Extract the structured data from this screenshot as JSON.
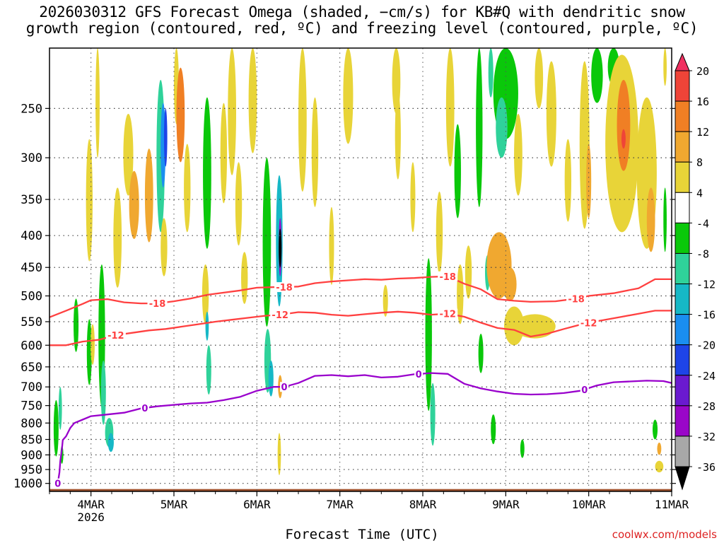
{
  "title": {
    "line1": "2026030312 GFS Forecast Omega (shaded, −cm/s) for KB#Q with dendritic snow",
    "line2": "growth region (contoured, red, ºC) and freezing level (contoured, purple, ºC)"
  },
  "xlabel": "Forecast Time (UTC)",
  "credit": "coolwx.com/models",
  "chart_data": {
    "type": "heatmap",
    "title": "2026030312 GFS Forecast Omega (shaded, −cm/s) for KB#Q with dendritic snow growth region (contoured, red, ºC) and freezing level (contoured, purple, ºC)",
    "xlabel": "Forecast Time (UTC)",
    "ylabel": "",
    "x_ticks": [
      {
        "day": 4,
        "label": "4MAR",
        "sublabel": "2026"
      },
      {
        "day": 5,
        "label": "5MAR"
      },
      {
        "day": 6,
        "label": "6MAR"
      },
      {
        "day": 7,
        "label": "7MAR"
      },
      {
        "day": 8,
        "label": "8MAR"
      },
      {
        "day": 9,
        "label": "9MAR"
      },
      {
        "day": 10,
        "label": "10MAR"
      },
      {
        "day": 11,
        "label": "11MAR"
      }
    ],
    "xlim": [
      3.5,
      11.0
    ],
    "y_ticks": [
      250,
      300,
      350,
      400,
      450,
      500,
      550,
      600,
      650,
      700,
      750,
      800,
      850,
      900,
      950,
      1000
    ],
    "ylim": [
      1030,
      200
    ],
    "grid": true,
    "colorbar": {
      "labels": [
        20,
        16,
        12,
        8,
        4,
        -4,
        -8,
        -12,
        -16,
        -20,
        -24,
        -28,
        -32,
        -36
      ],
      "colors": [
        "#f03060",
        "#ef4438",
        "#f07f24",
        "#f0a830",
        "#e8d438",
        "#ffffff",
        "#0ac80a",
        "#2fd29a",
        "#16b8c6",
        "#1a8ef0",
        "#1e44e8",
        "#6a1ad0",
        "#9a06c8",
        "#a8a8a8",
        "#000000"
      ]
    },
    "omega_blobs": [
      {
        "t": 3.58,
        "p": 820,
        "dt": 0.03,
        "dp": 170,
        "v": -8
      },
      {
        "t": 3.63,
        "p": 760,
        "dt": 0.02,
        "dp": 120,
        "v": -12
      },
      {
        "t": 3.65,
        "p": 900,
        "dt": 0.015,
        "dp": 60,
        "v": -8
      },
      {
        "t": 3.82,
        "p": 560,
        "dt": 0.03,
        "dp": 110,
        "v": -8
      },
      {
        "t": 3.98,
        "p": 360,
        "dt": 0.04,
        "dp": 160,
        "v": 6
      },
      {
        "t": 3.98,
        "p": 620,
        "dt": 0.03,
        "dp": 150,
        "v": -8
      },
      {
        "t": 4.02,
        "p": 600,
        "dt": 0.025,
        "dp": 90,
        "v": 6
      },
      {
        "t": 4.13,
        "p": 600,
        "dt": 0.04,
        "dp": 310,
        "v": -8
      },
      {
        "t": 4.15,
        "p": 720,
        "dt": 0.03,
        "dp": 170,
        "v": -12
      },
      {
        "t": 4.22,
        "p": 830,
        "dt": 0.05,
        "dp": 90,
        "v": -10
      },
      {
        "t": 4.24,
        "p": 860,
        "dt": 0.035,
        "dp": 60,
        "v": -16
      },
      {
        "t": 4.08,
        "p": 250,
        "dt": 0.025,
        "dp": 100,
        "v": 7
      },
      {
        "t": 4.32,
        "p": 410,
        "dt": 0.05,
        "dp": 150,
        "v": 6
      },
      {
        "t": 4.45,
        "p": 300,
        "dt": 0.06,
        "dp": 90,
        "v": 6
      },
      {
        "t": 4.52,
        "p": 360,
        "dt": 0.06,
        "dp": 90,
        "v": 9
      },
      {
        "t": 4.7,
        "p": 350,
        "dt": 0.05,
        "dp": 120,
        "v": 8
      },
      {
        "t": 4.84,
        "p": 310,
        "dt": 0.05,
        "dp": 170,
        "v": -10
      },
      {
        "t": 4.87,
        "p": 290,
        "dt": 0.03,
        "dp": 90,
        "v": -18
      },
      {
        "t": 4.9,
        "p": 280,
        "dt": 0.02,
        "dp": 60,
        "v": -22
      },
      {
        "t": 4.88,
        "p": 420,
        "dt": 0.04,
        "dp": 90,
        "v": 7
      },
      {
        "t": 5.03,
        "p": 210,
        "dt": 0.03,
        "dp": 110,
        "v": 7
      },
      {
        "t": 5.08,
        "p": 260,
        "dt": 0.05,
        "dp": 90,
        "v": 13
      },
      {
        "t": 5.16,
        "p": 340,
        "dt": 0.04,
        "dp": 110,
        "v": 6
      },
      {
        "t": 5.4,
        "p": 330,
        "dt": 0.05,
        "dp": 180,
        "v": -8
      },
      {
        "t": 5.38,
        "p": 500,
        "dt": 0.04,
        "dp": 110,
        "v": 6
      },
      {
        "t": 5.42,
        "p": 660,
        "dt": 0.03,
        "dp": 120,
        "v": -10
      },
      {
        "t": 5.4,
        "p": 560,
        "dt": 0.02,
        "dp": 60,
        "v": -16
      },
      {
        "t": 5.6,
        "p": 300,
        "dt": 0.04,
        "dp": 110,
        "v": 6
      },
      {
        "t": 5.7,
        "p": 260,
        "dt": 0.05,
        "dp": 120,
        "v": 7
      },
      {
        "t": 5.78,
        "p": 360,
        "dt": 0.04,
        "dp": 110,
        "v": 6
      },
      {
        "t": 5.85,
        "p": 470,
        "dt": 0.04,
        "dp": 90,
        "v": 6
      },
      {
        "t": 5.95,
        "p": 240,
        "dt": 0.05,
        "dp": 110,
        "v": 6
      },
      {
        "t": 6.12,
        "p": 430,
        "dt": 0.05,
        "dp": 260,
        "v": -8
      },
      {
        "t": 6.13,
        "p": 640,
        "dt": 0.04,
        "dp": 150,
        "v": -10
      },
      {
        "t": 6.17,
        "p": 680,
        "dt": 0.03,
        "dp": 90,
        "v": -16
      },
      {
        "t": 6.27,
        "p": 420,
        "dt": 0.04,
        "dp": 200,
        "v": -14
      },
      {
        "t": 6.28,
        "p": 420,
        "dt": 0.015,
        "dp": 90,
        "v": -30
      },
      {
        "t": 6.28,
        "p": 420,
        "dt": 0.006,
        "dp": 60,
        "v": -40
      },
      {
        "t": 6.28,
        "p": 700,
        "dt": 0.025,
        "dp": 60,
        "v": 9
      },
      {
        "t": 6.27,
        "p": 900,
        "dt": 0.02,
        "dp": 140,
        "v": 6
      },
      {
        "t": 6.55,
        "p": 250,
        "dt": 0.05,
        "dp": 180,
        "v": 6
      },
      {
        "t": 6.7,
        "p": 300,
        "dt": 0.04,
        "dp": 120,
        "v": 6
      },
      {
        "t": 6.9,
        "p": 420,
        "dt": 0.03,
        "dp": 120,
        "v": 5
      },
      {
        "t": 7.1,
        "p": 230,
        "dt": 0.06,
        "dp": 110,
        "v": 6
      },
      {
        "t": 7.55,
        "p": 510,
        "dt": 0.03,
        "dp": 60,
        "v": 6
      },
      {
        "t": 7.68,
        "p": 200,
        "dt": 0.05,
        "dp": 110,
        "v": 6
      },
      {
        "t": 7.7,
        "p": 280,
        "dt": 0.035,
        "dp": 90,
        "v": 6
      },
      {
        "t": 7.88,
        "p": 350,
        "dt": 0.03,
        "dp": 90,
        "v": 5
      },
      {
        "t": 8.07,
        "p": 600,
        "dt": 0.04,
        "dp": 330,
        "v": -8
      },
      {
        "t": 8.12,
        "p": 780,
        "dt": 0.03,
        "dp": 180,
        "v": -12
      },
      {
        "t": 8.2,
        "p": 400,
        "dt": 0.04,
        "dp": 120,
        "v": 6
      },
      {
        "t": 8.33,
        "p": 230,
        "dt": 0.05,
        "dp": 160,
        "v": 6
      },
      {
        "t": 8.42,
        "p": 320,
        "dt": 0.04,
        "dp": 110,
        "v": -8
      },
      {
        "t": 8.45,
        "p": 500,
        "dt": 0.04,
        "dp": 110,
        "v": 6
      },
      {
        "t": 8.55,
        "p": 460,
        "dt": 0.04,
        "dp": 90,
        "v": 6
      },
      {
        "t": 8.68,
        "p": 280,
        "dt": 0.04,
        "dp": 160,
        "v": -8
      },
      {
        "t": 8.7,
        "p": 620,
        "dt": 0.03,
        "dp": 90,
        "v": -8
      },
      {
        "t": 8.78,
        "p": 460,
        "dt": 0.03,
        "dp": 60,
        "v": -12
      },
      {
        "t": 8.82,
        "p": 210,
        "dt": 0.03,
        "dp": 60,
        "v": -10
      },
      {
        "t": 9.0,
        "p": 230,
        "dt": 0.15,
        "dp": 100,
        "v": -8
      },
      {
        "t": 8.95,
        "p": 270,
        "dt": 0.07,
        "dp": 60,
        "v": -12
      },
      {
        "t": 8.92,
        "p": 450,
        "dt": 0.15,
        "dp": 110,
        "v": 8
      },
      {
        "t": 9.05,
        "p": 480,
        "dt": 0.08,
        "dp": 60,
        "v": 10
      },
      {
        "t": 9.1,
        "p": 560,
        "dt": 0.12,
        "dp": 80,
        "v": 6
      },
      {
        "t": 9.35,
        "p": 560,
        "dt": 0.25,
        "dp": 50,
        "v": 6
      },
      {
        "t": 9.15,
        "p": 300,
        "dt": 0.05,
        "dp": 90,
        "v": 6
      },
      {
        "t": 8.85,
        "p": 820,
        "dt": 0.03,
        "dp": 90,
        "v": -8
      },
      {
        "t": 9.2,
        "p": 880,
        "dt": 0.025,
        "dp": 60,
        "v": -8
      },
      {
        "t": 9.4,
        "p": 200,
        "dt": 0.05,
        "dp": 100,
        "v": 6
      },
      {
        "t": 9.55,
        "p": 260,
        "dt": 0.06,
        "dp": 100,
        "v": 5
      },
      {
        "t": 9.75,
        "p": 330,
        "dt": 0.04,
        "dp": 100,
        "v": 5
      },
      {
        "t": 9.95,
        "p": 300,
        "dt": 0.06,
        "dp": 180,
        "v": 7
      },
      {
        "t": 10.0,
        "p": 330,
        "dt": 0.03,
        "dp": 90,
        "v": 10
      },
      {
        "t": 10.1,
        "p": 210,
        "dt": 0.07,
        "dp": 70,
        "v": -8
      },
      {
        "t": 10.3,
        "p": 200,
        "dt": 0.07,
        "dp": 60,
        "v": -8
      },
      {
        "t": 10.4,
        "p": 300,
        "dt": 0.2,
        "dp": 190,
        "v": 6
      },
      {
        "t": 10.42,
        "p": 270,
        "dt": 0.08,
        "dp": 90,
        "v": 12
      },
      {
        "t": 10.42,
        "p": 280,
        "dt": 0.025,
        "dp": 20,
        "v": 17
      },
      {
        "t": 10.7,
        "p": 330,
        "dt": 0.12,
        "dp": 180,
        "v": 6
      },
      {
        "t": 10.75,
        "p": 380,
        "dt": 0.05,
        "dp": 90,
        "v": 8
      },
      {
        "t": 10.8,
        "p": 820,
        "dt": 0.03,
        "dp": 60,
        "v": -8
      },
      {
        "t": 10.85,
        "p": 880,
        "dt": 0.025,
        "dp": 40,
        "v": 9
      },
      {
        "t": 10.85,
        "p": 940,
        "dt": 0.05,
        "dp": 40,
        "v": 5
      },
      {
        "t": 10.92,
        "p": 380,
        "dt": 0.02,
        "dp": 90,
        "v": -8
      },
      {
        "t": 10.92,
        "p": 210,
        "dt": 0.02,
        "dp": 40,
        "v": 6
      }
    ],
    "contours": [
      {
        "name": "-18",
        "color": "#ff4040",
        "label": "-18",
        "label_positions": [
          4.8,
          6.33,
          8.3,
          9.85
        ],
        "points": [
          [
            3.5,
            541
          ],
          [
            3.7,
            528
          ],
          [
            3.9,
            515
          ],
          [
            4.0,
            508
          ],
          [
            4.2,
            506
          ],
          [
            4.4,
            512
          ],
          [
            4.6,
            514
          ],
          [
            4.8,
            514
          ],
          [
            5.0,
            510
          ],
          [
            5.2,
            505
          ],
          [
            5.4,
            498
          ],
          [
            5.6,
            494
          ],
          [
            5.8,
            490
          ],
          [
            6.0,
            485
          ],
          [
            6.2,
            484
          ],
          [
            6.33,
            484
          ],
          [
            6.5,
            483
          ],
          [
            6.7,
            477
          ],
          [
            6.9,
            474
          ],
          [
            7.1,
            472
          ],
          [
            7.3,
            470
          ],
          [
            7.5,
            471
          ],
          [
            7.7,
            469
          ],
          [
            7.9,
            468
          ],
          [
            8.1,
            466
          ],
          [
            8.3,
            465
          ],
          [
            8.5,
            478
          ],
          [
            8.7,
            488
          ],
          [
            8.9,
            506
          ],
          [
            9.1,
            509
          ],
          [
            9.3,
            511
          ],
          [
            9.6,
            510
          ],
          [
            9.85,
            505
          ],
          [
            10.0,
            500
          ],
          [
            10.3,
            495
          ],
          [
            10.6,
            486
          ],
          [
            10.8,
            470
          ],
          [
            11.0,
            470
          ]
        ]
      },
      {
        "name": "-12",
        "color": "#ff4040",
        "label": "-12",
        "label_positions": [
          4.3,
          6.28,
          8.3,
          10.0
        ],
        "points": [
          [
            3.5,
            600
          ],
          [
            3.7,
            600
          ],
          [
            3.9,
            592
          ],
          [
            4.1,
            588
          ],
          [
            4.3,
            578
          ],
          [
            4.5,
            573
          ],
          [
            4.7,
            568
          ],
          [
            4.9,
            565
          ],
          [
            5.1,
            560
          ],
          [
            5.3,
            555
          ],
          [
            5.5,
            550
          ],
          [
            5.7,
            546
          ],
          [
            5.9,
            542
          ],
          [
            6.1,
            538
          ],
          [
            6.28,
            536
          ],
          [
            6.5,
            531
          ],
          [
            6.7,
            532
          ],
          [
            6.9,
            536
          ],
          [
            7.1,
            538
          ],
          [
            7.3,
            535
          ],
          [
            7.5,
            532
          ],
          [
            7.7,
            530
          ],
          [
            7.9,
            532
          ],
          [
            8.1,
            536
          ],
          [
            8.3,
            534
          ],
          [
            8.5,
            540
          ],
          [
            8.7,
            552
          ],
          [
            8.9,
            563
          ],
          [
            9.1,
            567
          ],
          [
            9.3,
            581
          ],
          [
            9.5,
            575
          ],
          [
            9.7,
            565
          ],
          [
            9.9,
            556
          ],
          [
            10.0,
            552
          ],
          [
            10.2,
            546
          ],
          [
            10.4,
            540
          ],
          [
            10.6,
            534
          ],
          [
            10.8,
            528
          ],
          [
            11.0,
            528
          ]
        ]
      },
      {
        "name": "0",
        "color": "#9900cc",
        "label": "0",
        "label_positions": [
          3.6,
          4.65,
          6.33,
          7.95,
          9.95
        ],
        "points": [
          [
            3.6,
            1000
          ],
          [
            3.62,
            960
          ],
          [
            3.63,
            920
          ],
          [
            3.65,
            880
          ],
          [
            3.66,
            852
          ],
          [
            3.7,
            840
          ],
          [
            3.75,
            815
          ],
          [
            3.8,
            800
          ],
          [
            3.9,
            790
          ],
          [
            4.0,
            780
          ],
          [
            4.2,
            775
          ],
          [
            4.4,
            770
          ],
          [
            4.6,
            758
          ],
          [
            4.8,
            752
          ],
          [
            5.0,
            748
          ],
          [
            5.2,
            744
          ],
          [
            5.4,
            742
          ],
          [
            5.6,
            735
          ],
          [
            5.8,
            726
          ],
          [
            6.0,
            710
          ],
          [
            6.2,
            700
          ],
          [
            6.33,
            700
          ],
          [
            6.5,
            690
          ],
          [
            6.7,
            672
          ],
          [
            6.9,
            670
          ],
          [
            7.1,
            673
          ],
          [
            7.3,
            670
          ],
          [
            7.5,
            676
          ],
          [
            7.7,
            674
          ],
          [
            7.9,
            668
          ],
          [
            8.1,
            665
          ],
          [
            8.3,
            667
          ],
          [
            8.5,
            692
          ],
          [
            8.7,
            704
          ],
          [
            8.9,
            712
          ],
          [
            9.1,
            718
          ],
          [
            9.3,
            720
          ],
          [
            9.5,
            719
          ],
          [
            9.7,
            716
          ],
          [
            9.9,
            710
          ],
          [
            10.1,
            696
          ],
          [
            10.3,
            688
          ],
          [
            10.5,
            686
          ],
          [
            10.7,
            684
          ],
          [
            10.9,
            685
          ],
          [
            11.0,
            690
          ]
        ]
      }
    ]
  }
}
